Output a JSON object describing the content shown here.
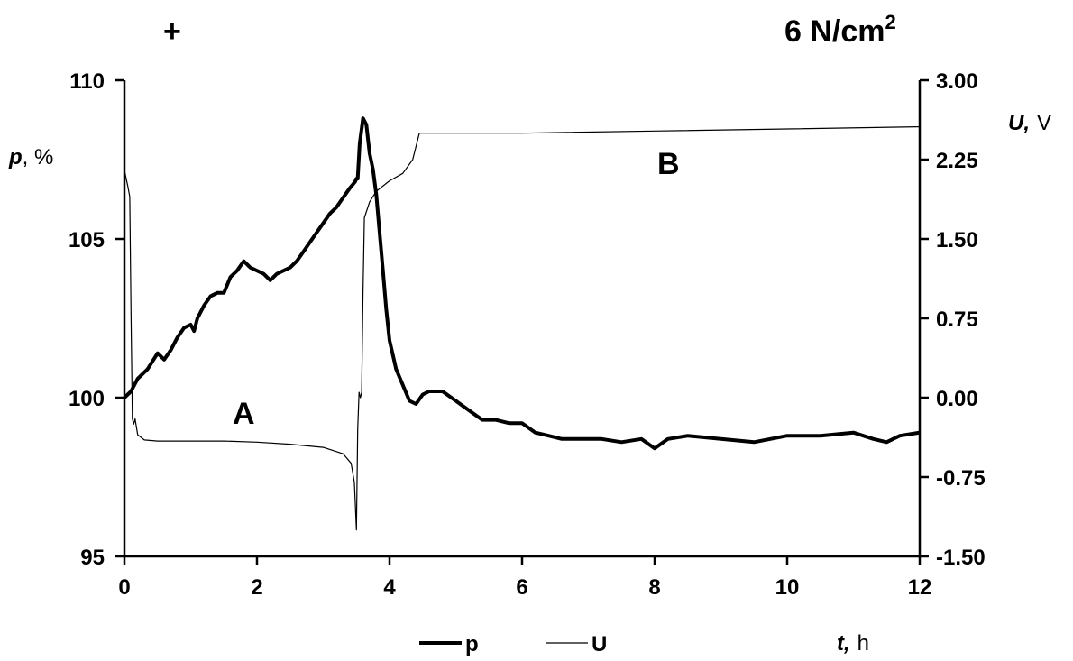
{
  "header": {
    "left_symbol": "+",
    "right_value": "6 N/cm",
    "right_sup": "2"
  },
  "annotations": {
    "a": "A",
    "b": "B"
  },
  "chart_data": {
    "type": "line",
    "x": {
      "label_var": "t,",
      "label_unit": "h",
      "range": [
        0,
        12
      ],
      "ticks": [
        "0",
        "2",
        "4",
        "6",
        "8",
        "10",
        "12"
      ]
    },
    "y_left": {
      "label_var": "p",
      "label_unit": ", %",
      "range": [
        95,
        110
      ],
      "ticks": [
        "95",
        "100",
        "105",
        "110"
      ]
    },
    "y_right": {
      "label_var": "U,",
      "label_unit": "V",
      "range": [
        -1.5,
        3.0
      ],
      "ticks": [
        "-1.50",
        "-0.75",
        "0.00",
        "0.75",
        "1.50",
        "2.25",
        "3.00"
      ]
    },
    "grid": false,
    "legend_position": "bottom",
    "series": [
      {
        "name": "p",
        "axis": "left",
        "stroke_width": 4,
        "points": [
          [
            0,
            100.0
          ],
          [
            0.1,
            100.2
          ],
          [
            0.2,
            100.6
          ],
          [
            0.35,
            100.9
          ],
          [
            0.5,
            101.4
          ],
          [
            0.6,
            101.2
          ],
          [
            0.7,
            101.5
          ],
          [
            0.8,
            101.9
          ],
          [
            0.9,
            102.2
          ],
          [
            1.0,
            102.3
          ],
          [
            1.05,
            102.1
          ],
          [
            1.1,
            102.5
          ],
          [
            1.2,
            102.9
          ],
          [
            1.3,
            103.2
          ],
          [
            1.4,
            103.3
          ],
          [
            1.5,
            103.3
          ],
          [
            1.6,
            103.8
          ],
          [
            1.7,
            104.0
          ],
          [
            1.8,
            104.3
          ],
          [
            1.9,
            104.1
          ],
          [
            2.0,
            104.0
          ],
          [
            2.1,
            103.9
          ],
          [
            2.2,
            103.7
          ],
          [
            2.3,
            103.9
          ],
          [
            2.4,
            104.0
          ],
          [
            2.5,
            104.1
          ],
          [
            2.6,
            104.3
          ],
          [
            2.7,
            104.6
          ],
          [
            2.8,
            104.9
          ],
          [
            2.9,
            105.2
          ],
          [
            3.0,
            105.5
          ],
          [
            3.1,
            105.8
          ],
          [
            3.2,
            106.0
          ],
          [
            3.3,
            106.3
          ],
          [
            3.4,
            106.6
          ],
          [
            3.48,
            106.8
          ],
          [
            3.5,
            106.9
          ],
          [
            3.52,
            106.9
          ],
          [
            3.55,
            108.0
          ],
          [
            3.6,
            108.8
          ],
          [
            3.65,
            108.6
          ],
          [
            3.7,
            107.7
          ],
          [
            3.75,
            107.2
          ],
          [
            3.8,
            106.4
          ],
          [
            3.85,
            105.2
          ],
          [
            3.9,
            104.0
          ],
          [
            3.95,
            102.8
          ],
          [
            4.0,
            101.8
          ],
          [
            4.1,
            100.9
          ],
          [
            4.2,
            100.4
          ],
          [
            4.3,
            99.9
          ],
          [
            4.4,
            99.8
          ],
          [
            4.5,
            100.1
          ],
          [
            4.6,
            100.2
          ],
          [
            4.7,
            100.2
          ],
          [
            4.8,
            100.2
          ],
          [
            5.0,
            99.9
          ],
          [
            5.2,
            99.6
          ],
          [
            5.4,
            99.3
          ],
          [
            5.6,
            99.3
          ],
          [
            5.8,
            99.2
          ],
          [
            6.0,
            99.2
          ],
          [
            6.2,
            98.9
          ],
          [
            6.4,
            98.8
          ],
          [
            6.6,
            98.7
          ],
          [
            6.8,
            98.7
          ],
          [
            7.0,
            98.7
          ],
          [
            7.2,
            98.7
          ],
          [
            7.5,
            98.6
          ],
          [
            7.8,
            98.7
          ],
          [
            8.0,
            98.4
          ],
          [
            8.2,
            98.7
          ],
          [
            8.5,
            98.8
          ],
          [
            9.0,
            98.7
          ],
          [
            9.5,
            98.6
          ],
          [
            10.0,
            98.8
          ],
          [
            10.5,
            98.8
          ],
          [
            11.0,
            98.9
          ],
          [
            11.3,
            98.7
          ],
          [
            11.5,
            98.6
          ],
          [
            11.7,
            98.8
          ],
          [
            12.0,
            98.9
          ]
        ]
      },
      {
        "name": "U",
        "axis": "right",
        "stroke_width": 1.2,
        "points": [
          [
            0,
            2.15
          ],
          [
            0.05,
            2.0
          ],
          [
            0.08,
            1.9
          ],
          [
            0.1,
            0.8
          ],
          [
            0.12,
            -0.2
          ],
          [
            0.14,
            -0.25
          ],
          [
            0.16,
            -0.2
          ],
          [
            0.2,
            -0.35
          ],
          [
            0.3,
            -0.4
          ],
          [
            0.5,
            -0.41
          ],
          [
            1.0,
            -0.41
          ],
          [
            1.5,
            -0.41
          ],
          [
            2.0,
            -0.42
          ],
          [
            2.5,
            -0.44
          ],
          [
            3.0,
            -0.47
          ],
          [
            3.3,
            -0.53
          ],
          [
            3.42,
            -0.62
          ],
          [
            3.47,
            -0.8
          ],
          [
            3.5,
            -1.25
          ],
          [
            3.52,
            -0.3
          ],
          [
            3.54,
            0.05
          ],
          [
            3.56,
            0.0
          ],
          [
            3.58,
            0.05
          ],
          [
            3.6,
            1.0
          ],
          [
            3.62,
            1.7
          ],
          [
            3.7,
            1.85
          ],
          [
            3.8,
            1.95
          ],
          [
            4.0,
            2.05
          ],
          [
            4.2,
            2.12
          ],
          [
            4.35,
            2.25
          ],
          [
            4.45,
            2.5
          ],
          [
            5.0,
            2.5
          ],
          [
            6.0,
            2.5
          ],
          [
            8.0,
            2.52
          ],
          [
            10.0,
            2.54
          ],
          [
            12.0,
            2.56
          ]
        ]
      }
    ]
  }
}
